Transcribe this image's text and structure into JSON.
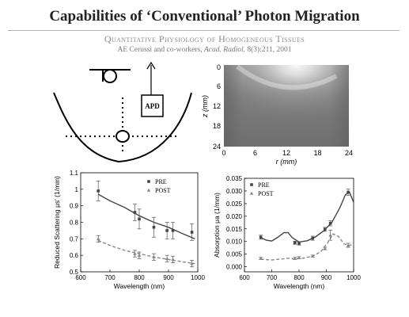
{
  "title": "Capabilities of ‘Conventional’ Photon Migration",
  "subtitle": "Quantitative Physiology of Homogeneous Tissues",
  "citation": {
    "authors": "AE Cerussi and co-workers, ",
    "journal": "Acad. Radiol.",
    "ref": " 8(3):211, 2001"
  },
  "diagram": {
    "detector_label": "APD"
  },
  "heatmap": {
    "type": "heatmap",
    "xlabel": "r (mm)",
    "ylabel": "z (mm)",
    "x_ticks": [
      "0",
      "6",
      "12",
      "18",
      "24"
    ],
    "y_ticks": [
      "0",
      "6",
      "12",
      "18",
      "24"
    ],
    "xlim": [
      0,
      24
    ],
    "ylim": [
      0,
      24
    ]
  },
  "chart_data": [
    {
      "type": "line",
      "xlabel": "Wavelength (nm)",
      "ylabel": "Reduced Scattering μs′ (1/mm)",
      "xlim": [
        600,
        1000
      ],
      "ylim": [
        0.5,
        1.1
      ],
      "x_ticks": [
        600,
        700,
        800,
        900,
        1000
      ],
      "y_ticks": [
        0.5,
        0.6,
        0.7,
        0.8,
        0.9,
        1.0,
        1.1
      ],
      "legend": "top-right",
      "series": [
        {
          "name": "PRE",
          "marker": "square",
          "points": [
            {
              "x": 660,
              "y": 0.99,
              "err": 0.06
            },
            {
              "x": 785,
              "y": 0.86,
              "err": 0.05
            },
            {
              "x": 800,
              "y": 0.82,
              "err": 0.06
            },
            {
              "x": 850,
              "y": 0.77,
              "err": 0.06
            },
            {
              "x": 895,
              "y": 0.75,
              "err": 0.05
            },
            {
              "x": 915,
              "y": 0.75,
              "err": 0.05
            },
            {
              "x": 980,
              "y": 0.74,
              "err": 0.05
            }
          ],
          "fit": [
            {
              "x": 660,
              "y": 0.97
            },
            {
              "x": 700,
              "y": 0.93
            },
            {
              "x": 750,
              "y": 0.89
            },
            {
              "x": 800,
              "y": 0.84
            },
            {
              "x": 850,
              "y": 0.8
            },
            {
              "x": 900,
              "y": 0.77
            },
            {
              "x": 950,
              "y": 0.73
            },
            {
              "x": 990,
              "y": 0.7
            }
          ]
        },
        {
          "name": "POST",
          "marker": "triangle",
          "points": [
            {
              "x": 660,
              "y": 0.7,
              "err": 0.02
            },
            {
              "x": 785,
              "y": 0.61,
              "err": 0.02
            },
            {
              "x": 800,
              "y": 0.6,
              "err": 0.02
            },
            {
              "x": 850,
              "y": 0.59,
              "err": 0.02
            },
            {
              "x": 895,
              "y": 0.58,
              "err": 0.02
            },
            {
              "x": 915,
              "y": 0.575,
              "err": 0.02
            },
            {
              "x": 980,
              "y": 0.55,
              "err": 0.02
            }
          ],
          "fit": [
            {
              "x": 660,
              "y": 0.69
            },
            {
              "x": 700,
              "y": 0.66
            },
            {
              "x": 750,
              "y": 0.63
            },
            {
              "x": 800,
              "y": 0.61
            },
            {
              "x": 850,
              "y": 0.59
            },
            {
              "x": 900,
              "y": 0.575
            },
            {
              "x": 950,
              "y": 0.56
            },
            {
              "x": 990,
              "y": 0.55
            }
          ]
        }
      ]
    },
    {
      "type": "line",
      "xlabel": "Wavelength (nm)",
      "ylabel": "Absorption μa (1/mm)",
      "xlim": [
        600,
        1000
      ],
      "ylim": [
        -0.002,
        0.035
      ],
      "x_ticks": [
        600,
        700,
        800,
        900,
        1000
      ],
      "y_ticks": [
        "0.000",
        "0.005",
        "0.010",
        "0.015",
        "0.020",
        "0.025",
        "0.030",
        "0.035"
      ],
      "legend": "top-left",
      "series": [
        {
          "name": "PRE",
          "marker": "square",
          "points": [
            {
              "x": 660,
              "y": 0.0117,
              "err": 0.0008
            },
            {
              "x": 785,
              "y": 0.0095,
              "err": 0.0006
            },
            {
              "x": 800,
              "y": 0.0092,
              "err": 0.0006
            },
            {
              "x": 850,
              "y": 0.0113,
              "err": 0.0008
            },
            {
              "x": 895,
              "y": 0.0148,
              "err": 0.0008
            },
            {
              "x": 915,
              "y": 0.0172,
              "err": 0.001
            },
            {
              "x": 980,
              "y": 0.0295,
              "err": 0.0012
            }
          ],
          "fit": [
            {
              "x": 660,
              "y": 0.0115
            },
            {
              "x": 680,
              "y": 0.0105
            },
            {
              "x": 700,
              "y": 0.0102
            },
            {
              "x": 720,
              "y": 0.0115
            },
            {
              "x": 745,
              "y": 0.0135
            },
            {
              "x": 760,
              "y": 0.0135
            },
            {
              "x": 775,
              "y": 0.0115
            },
            {
              "x": 800,
              "y": 0.0098
            },
            {
              "x": 830,
              "y": 0.0103
            },
            {
              "x": 860,
              "y": 0.0118
            },
            {
              "x": 890,
              "y": 0.0142
            },
            {
              "x": 920,
              "y": 0.0175
            },
            {
              "x": 950,
              "y": 0.0235
            },
            {
              "x": 970,
              "y": 0.0285
            },
            {
              "x": 985,
              "y": 0.0295
            },
            {
              "x": 1000,
              "y": 0.0255
            }
          ]
        },
        {
          "name": "POST",
          "marker": "triangle",
          "points": [
            {
              "x": 660,
              "y": 0.0033,
              "err": 0.0004
            },
            {
              "x": 785,
              "y": 0.0033,
              "err": 0.0004
            },
            {
              "x": 800,
              "y": 0.0036,
              "err": 0.0004
            },
            {
              "x": 850,
              "y": 0.0042,
              "err": 0.0004
            },
            {
              "x": 895,
              "y": 0.0072,
              "err": 0.0005
            },
            {
              "x": 915,
              "y": 0.0125,
              "err": 0.002
            },
            {
              "x": 980,
              "y": 0.0085,
              "err": 0.0008
            }
          ],
          "fit": [
            {
              "x": 660,
              "y": 0.003
            },
            {
              "x": 700,
              "y": 0.0027
            },
            {
              "x": 740,
              "y": 0.0031
            },
            {
              "x": 760,
              "y": 0.0034
            },
            {
              "x": 780,
              "y": 0.0031
            },
            {
              "x": 810,
              "y": 0.0033
            },
            {
              "x": 850,
              "y": 0.0042
            },
            {
              "x": 880,
              "y": 0.006
            },
            {
              "x": 905,
              "y": 0.0095
            },
            {
              "x": 925,
              "y": 0.013
            },
            {
              "x": 945,
              "y": 0.012
            },
            {
              "x": 965,
              "y": 0.009
            },
            {
              "x": 985,
              "y": 0.0085
            },
            {
              "x": 1000,
              "y": 0.0088
            }
          ]
        }
      ]
    }
  ]
}
